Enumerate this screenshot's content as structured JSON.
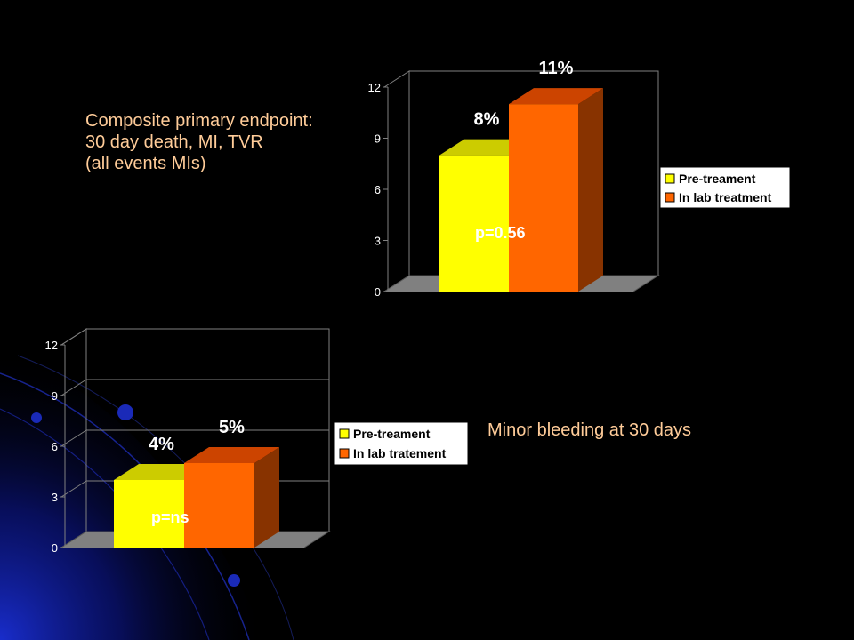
{
  "colors": {
    "background": "#000000",
    "caption_text": "#FFCC99",
    "label_text": "#FFFFFF",
    "tick_text": "#FFFFFF",
    "series_pre": "#FFFF00",
    "series_pre_top": "#CCCC00",
    "series_inlab": "#FF6600",
    "series_inlab_top": "#CC4400",
    "series_inlab_side": "#883300",
    "plot_border": "#808080",
    "floor": "#808080",
    "legend_bg": "#FFFFFF",
    "legend_text": "#000000"
  },
  "captions": {
    "composite": [
      "Composite primary endpoint:",
      "30 day death, MI, TVR",
      "(all events MIs)"
    ],
    "minor_bleeding": "Minor bleeding at 30 days"
  },
  "chart_data": [
    {
      "type": "bar",
      "categories": [
        ""
      ],
      "series": [
        {
          "name": "Pre-treament",
          "values": [
            8
          ]
        },
        {
          "name": "In lab treatment",
          "values": [
            11
          ]
        }
      ],
      "data_labels": [
        "8%",
        "11%"
      ],
      "annotation": "p=0.56",
      "ylim": [
        0,
        12
      ],
      "yticks": [
        0,
        3,
        6,
        9,
        12
      ],
      "grid": false,
      "legend": "right"
    },
    {
      "type": "bar",
      "categories": [
        ""
      ],
      "series": [
        {
          "name": "Pre-treament",
          "values": [
            4
          ]
        },
        {
          "name": "In lab tratement",
          "values": [
            5
          ]
        }
      ],
      "data_labels": [
        "4%",
        "5%"
      ],
      "annotation": "p=ns",
      "ylim": [
        0,
        12
      ],
      "yticks": [
        0,
        3,
        6,
        9,
        12
      ],
      "grid": true,
      "legend": "right"
    }
  ]
}
